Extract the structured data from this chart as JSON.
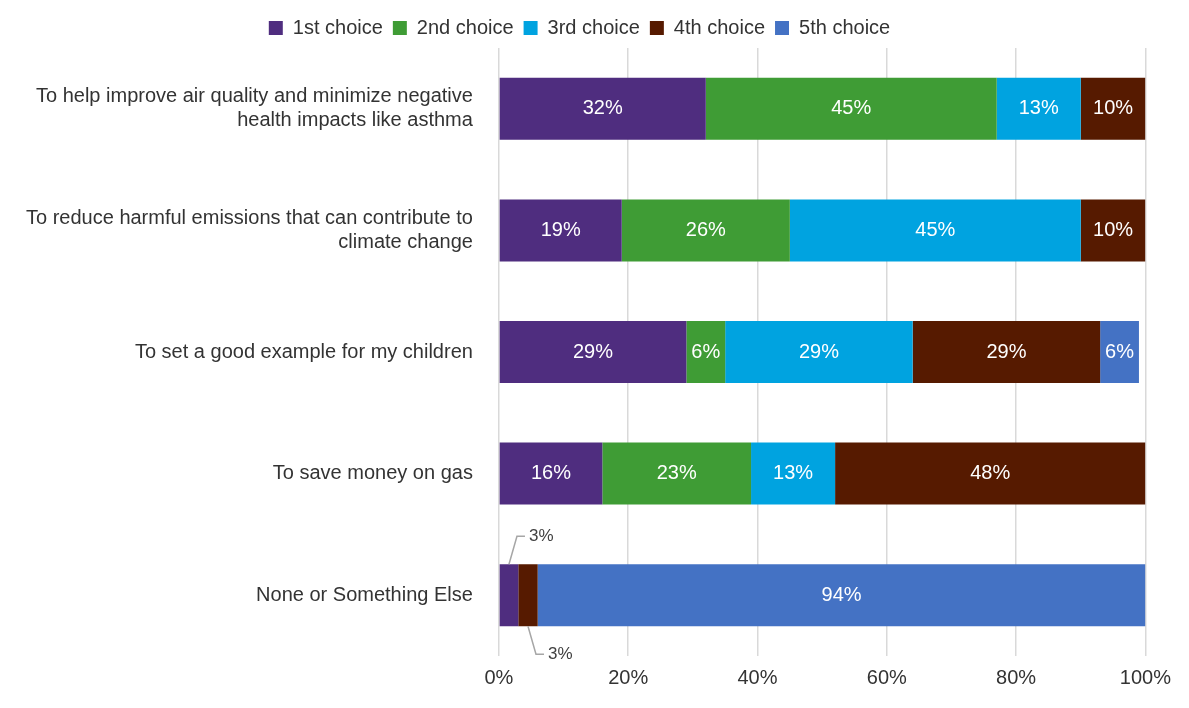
{
  "chart_data": {
    "type": "bar",
    "orientation": "horizontal",
    "stacked": true,
    "categories": [
      "To help improve air quality and minimize negative health impacts like asthma",
      "To reduce harmful emissions that can contribute to climate change",
      "To set a good example for my children",
      "To save money on gas",
      "None or Something Else"
    ],
    "series": [
      {
        "name": "1st choice",
        "color": "#4f2d7f",
        "values": [
          32,
          19,
          29,
          16,
          3
        ],
        "value_labels": [
          "32%",
          "19%",
          "29%",
          "16%",
          "3%"
        ]
      },
      {
        "name": "2nd choice",
        "color": "#3f9c35",
        "values": [
          45,
          26,
          6,
          23,
          null
        ],
        "value_labels": [
          "45%",
          "26%",
          "6%",
          "23%",
          null
        ]
      },
      {
        "name": "3rd choice",
        "color": "#00a3e0",
        "values": [
          13,
          45,
          29,
          13,
          null
        ],
        "value_labels": [
          "13%",
          "45%",
          "29%",
          "13%",
          null
        ]
      },
      {
        "name": "4th choice",
        "color": "#561a00",
        "values": [
          10,
          10,
          29,
          48,
          3
        ],
        "value_labels": [
          "10%",
          "10%",
          "29%",
          "48%",
          "3%"
        ]
      },
      {
        "name": "5th choice",
        "color": "#4472c4",
        "values": [
          null,
          null,
          6,
          null,
          94
        ],
        "value_labels": [
          null,
          null,
          "6%",
          null,
          "94%"
        ]
      }
    ],
    "xlim": [
      0,
      100
    ],
    "xticks": [
      {
        "value": 0,
        "label": "0%"
      },
      {
        "value": 20,
        "label": "20%"
      },
      {
        "value": 40,
        "label": "40%"
      },
      {
        "value": 60,
        "label": "60%"
      },
      {
        "value": 80,
        "label": "80%"
      },
      {
        "value": 100,
        "label": "100%"
      }
    ],
    "grid": "x",
    "legend": "top"
  }
}
